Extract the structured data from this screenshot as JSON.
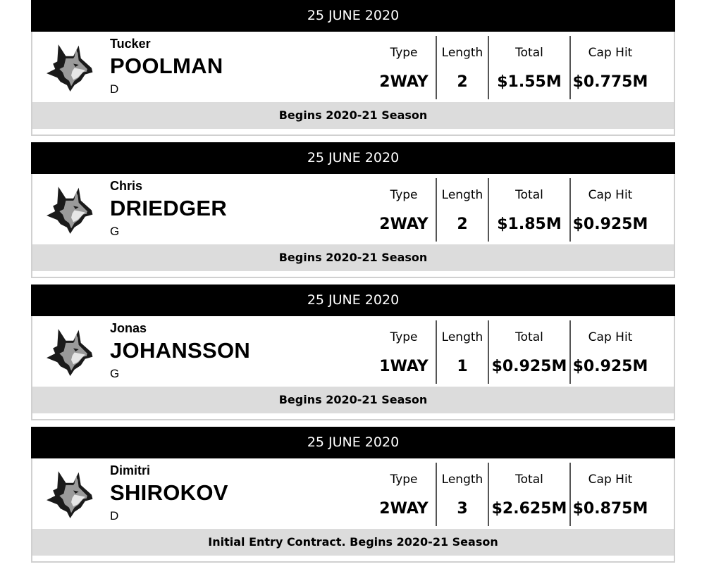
{
  "contracts": [
    {
      "date": "25 JUNE 2020",
      "first_name": "Tucker",
      "last_name": "POOLMAN",
      "position": "D",
      "labels": {
        "type": "Type",
        "length": "Length",
        "total": "Total",
        "cap_hit": "Cap Hit"
      },
      "type": "2WAY",
      "length": "2",
      "total": "$1.55M",
      "cap_hit": "$0.775M",
      "note": "Begins 2020-21 Season",
      "logo": "husky-logo-icon"
    },
    {
      "date": "25 JUNE 2020",
      "first_name": "Chris",
      "last_name": "DRIEDGER",
      "position": "G",
      "labels": {
        "type": "Type",
        "length": "Length",
        "total": "Total",
        "cap_hit": "Cap Hit"
      },
      "type": "2WAY",
      "length": "2",
      "total": "$1.85M",
      "cap_hit": "$0.925M",
      "note": "Begins 2020-21 Season",
      "logo": "husky-logo-icon"
    },
    {
      "date": "25 JUNE 2020",
      "first_name": "Jonas",
      "last_name": "JOHANSSON",
      "position": "G",
      "labels": {
        "type": "Type",
        "length": "Length",
        "total": "Total",
        "cap_hit": "Cap Hit"
      },
      "type": "1WAY",
      "length": "1",
      "total": "$0.925M",
      "cap_hit": "$0.925M",
      "note": "Begins 2020-21 Season",
      "logo": "husky-logo-icon"
    },
    {
      "date": "25 JUNE 2020",
      "first_name": "Dimitri",
      "last_name": "SHIROKOV",
      "position": "D",
      "labels": {
        "type": "Type",
        "length": "Length",
        "total": "Total",
        "cap_hit": "Cap Hit"
      },
      "type": "2WAY",
      "length": "3",
      "total": "$2.625M",
      "cap_hit": "$0.875M",
      "note": "Initial Entry Contract. Begins 2020-21 Season",
      "logo": "husky-logo-icon"
    }
  ],
  "colors": {
    "header_bg": "#000000",
    "header_text": "#ffffff",
    "footer_bg": "#dcdcdc",
    "border": "#d0d0d0",
    "divider": "#555555"
  }
}
